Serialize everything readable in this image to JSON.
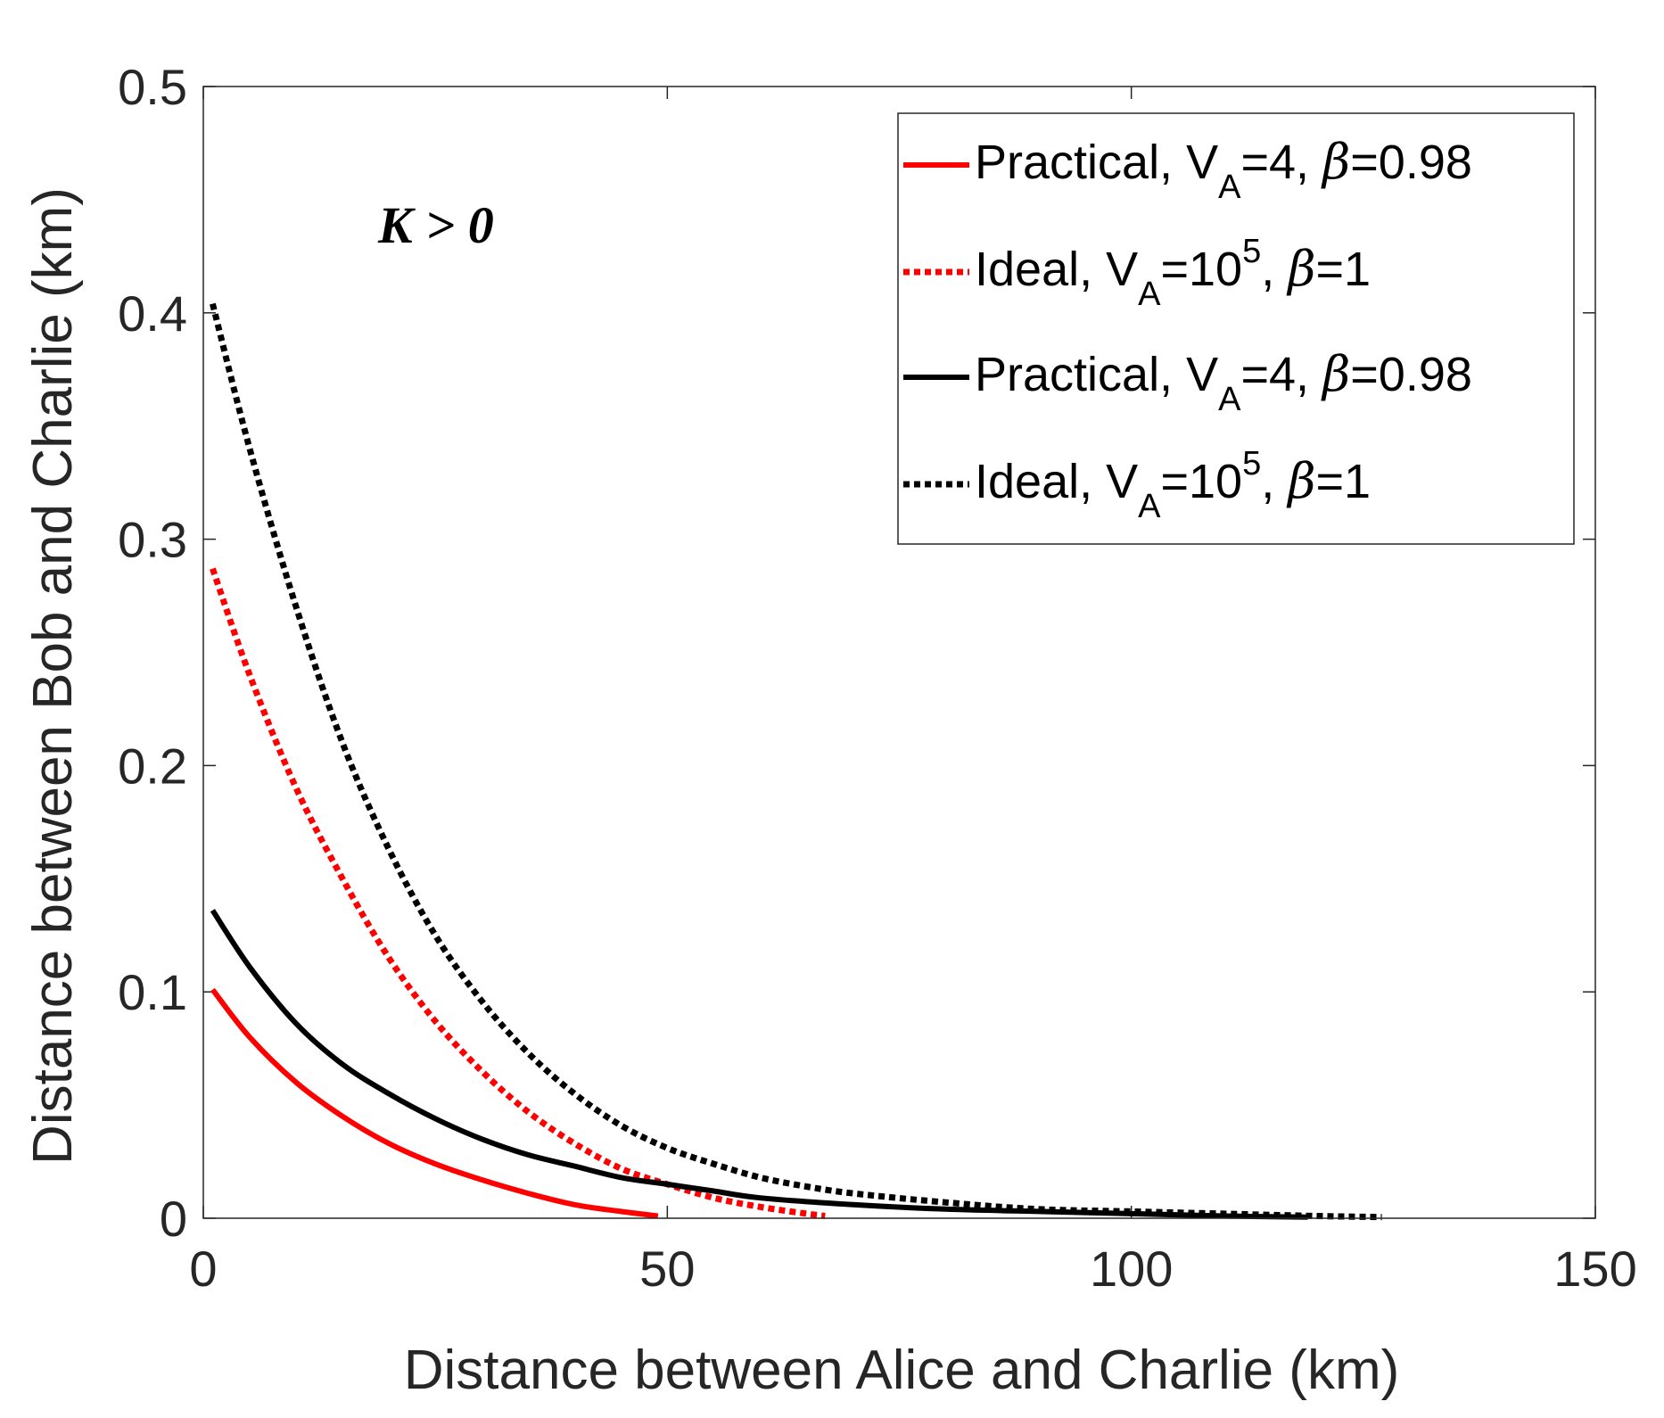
{
  "chart_data": {
    "type": "line",
    "title": "",
    "xlabel": "Distance between Alice and Charlie (km)",
    "ylabel": "Distance between Bob and Charlie (km)",
    "xlim": [
      0,
      150
    ],
    "ylim": [
      0,
      0.5
    ],
    "xticks": [
      0,
      50,
      100,
      150
    ],
    "xtick_labels": [
      "0",
      "50",
      "100",
      "150"
    ],
    "yticks": [
      0,
      0.1,
      0.2,
      0.3,
      0.4,
      0.5
    ],
    "ytick_labels": [
      "0",
      "0.1",
      "0.2",
      "0.3",
      "0.4",
      "0.5"
    ],
    "grid": false,
    "legend_position": "top-right",
    "annotation": "K > 0",
    "series": [
      {
        "name": "Practical, V_A=4, β=0.98",
        "legend": {
          "pre": "Practical, V",
          "sub": "A",
          "mid": "=4, ",
          "greek": "β",
          "post": "=0.98"
        },
        "color": "#ff0000",
        "style": "solid",
        "x": [
          1,
          5,
          10,
          15,
          20,
          25,
          30,
          35,
          40,
          45,
          49
        ],
        "y": [
          0.101,
          0.08,
          0.06,
          0.045,
          0.033,
          0.024,
          0.017,
          0.011,
          0.006,
          0.003,
          0.001
        ]
      },
      {
        "name": "Ideal, V_A=10^5, β=1",
        "legend": {
          "pre": "Ideal, V",
          "sub": "A",
          "mid": "=10",
          "sup": "5",
          "mid2": ", ",
          "greek": "β",
          "post": "=1"
        },
        "color": "#ff0000",
        "style": "dotted",
        "x": [
          1,
          5,
          10,
          15,
          20,
          25,
          30,
          35,
          40,
          45,
          50,
          55,
          60,
          65,
          67
        ],
        "y": [
          0.287,
          0.24,
          0.19,
          0.15,
          0.115,
          0.087,
          0.065,
          0.047,
          0.033,
          0.022,
          0.015,
          0.009,
          0.005,
          0.002,
          0.001
        ]
      },
      {
        "name": "Practical, V_A=4, β=0.98",
        "legend": {
          "pre": "Practical, V",
          "sub": "A",
          "mid": "=4, ",
          "greek": "β",
          "post": "=0.98"
        },
        "color": "#000000",
        "style": "solid",
        "x": [
          1,
          5,
          10,
          15,
          20,
          25,
          30,
          35,
          40,
          45,
          50,
          55,
          60,
          70,
          80,
          90,
          100,
          110,
          119
        ],
        "y": [
          0.136,
          0.111,
          0.086,
          0.068,
          0.055,
          0.044,
          0.035,
          0.028,
          0.023,
          0.018,
          0.015,
          0.012,
          0.009,
          0.006,
          0.004,
          0.003,
          0.002,
          0.001,
          0.0005
        ]
      },
      {
        "name": "Ideal, V_A=10^5, β=1",
        "legend": {
          "pre": "Ideal, V",
          "sub": "A",
          "mid": "=10",
          "sup": "5",
          "mid2": ", ",
          "greek": "β",
          "post": "=1"
        },
        "color": "#000000",
        "style": "dotted",
        "x": [
          1,
          5,
          10,
          15,
          20,
          25,
          30,
          35,
          40,
          45,
          50,
          55,
          60,
          65,
          70,
          80,
          90,
          100,
          110,
          120,
          127
        ],
        "y": [
          0.404,
          0.34,
          0.27,
          0.21,
          0.163,
          0.125,
          0.096,
          0.073,
          0.055,
          0.041,
          0.031,
          0.024,
          0.018,
          0.014,
          0.011,
          0.007,
          0.004,
          0.003,
          0.002,
          0.001,
          0.0005
        ]
      }
    ]
  }
}
